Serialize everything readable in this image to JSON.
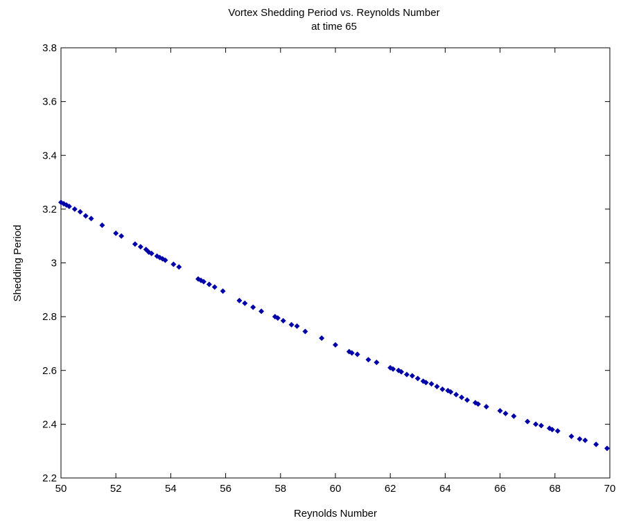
{
  "chart_data": {
    "type": "scatter",
    "title": "Vortex Shedding Period vs. Reynolds Number",
    "subtitle": "at time 65",
    "xlabel": "Reynolds Number",
    "ylabel": "Shedding Period",
    "xlim": [
      50,
      70
    ],
    "ylim": [
      2.2,
      3.8
    ],
    "xticks": [
      "50",
      "52",
      "54",
      "56",
      "58",
      "60",
      "62",
      "64",
      "66",
      "68",
      "70"
    ],
    "yticks": [
      "2.2",
      "2.4",
      "2.6",
      "2.8",
      "3",
      "3.2",
      "3.4",
      "3.6",
      "3.8"
    ],
    "grid": false,
    "marker_color": "#0000a8",
    "series": [
      {
        "x": [
          50.0,
          50.1,
          50.2,
          50.3,
          50.5,
          50.7,
          50.9,
          51.1,
          51.5,
          52.0,
          52.2,
          52.7,
          52.9,
          53.1,
          53.2,
          53.3,
          53.5,
          53.6,
          53.7,
          53.8,
          54.1,
          54.3,
          55.0,
          55.1,
          55.2,
          55.4,
          55.6,
          55.9,
          56.5,
          56.7,
          57.0,
          57.3,
          57.8,
          57.9,
          58.1,
          58.4,
          58.6,
          58.9,
          59.5,
          60.0,
          60.5,
          60.6,
          60.8,
          61.2,
          61.5,
          62.0,
          62.1,
          62.3,
          62.4,
          62.6,
          62.8,
          63.0,
          63.2,
          63.3,
          63.5,
          63.7,
          63.9,
          64.1,
          64.2,
          64.4,
          64.6,
          64.8,
          65.1,
          65.2,
          65.5,
          66.0,
          66.2,
          66.5,
          67.0,
          67.3,
          67.5,
          67.8,
          67.9,
          68.1,
          68.6,
          68.9,
          69.1,
          69.5,
          69.9
        ],
        "y": [
          3.225,
          3.22,
          3.215,
          3.21,
          3.2,
          3.19,
          3.175,
          3.165,
          3.14,
          3.11,
          3.1,
          3.07,
          3.06,
          3.05,
          3.04,
          3.035,
          3.025,
          3.02,
          3.015,
          3.01,
          2.995,
          2.985,
          2.94,
          2.935,
          2.93,
          2.92,
          2.91,
          2.895,
          2.86,
          2.85,
          2.835,
          2.82,
          2.8,
          2.795,
          2.785,
          2.77,
          2.765,
          2.745,
          2.72,
          2.695,
          2.67,
          2.665,
          2.66,
          2.64,
          2.63,
          2.61,
          2.605,
          2.6,
          2.595,
          2.585,
          2.58,
          2.57,
          2.56,
          2.555,
          2.55,
          2.54,
          2.53,
          2.525,
          2.52,
          2.51,
          2.5,
          2.49,
          2.48,
          2.475,
          2.465,
          2.45,
          2.44,
          2.43,
          2.41,
          2.4,
          2.395,
          2.385,
          2.38,
          2.375,
          2.355,
          2.345,
          2.34,
          2.325,
          2.31
        ]
      }
    ]
  }
}
